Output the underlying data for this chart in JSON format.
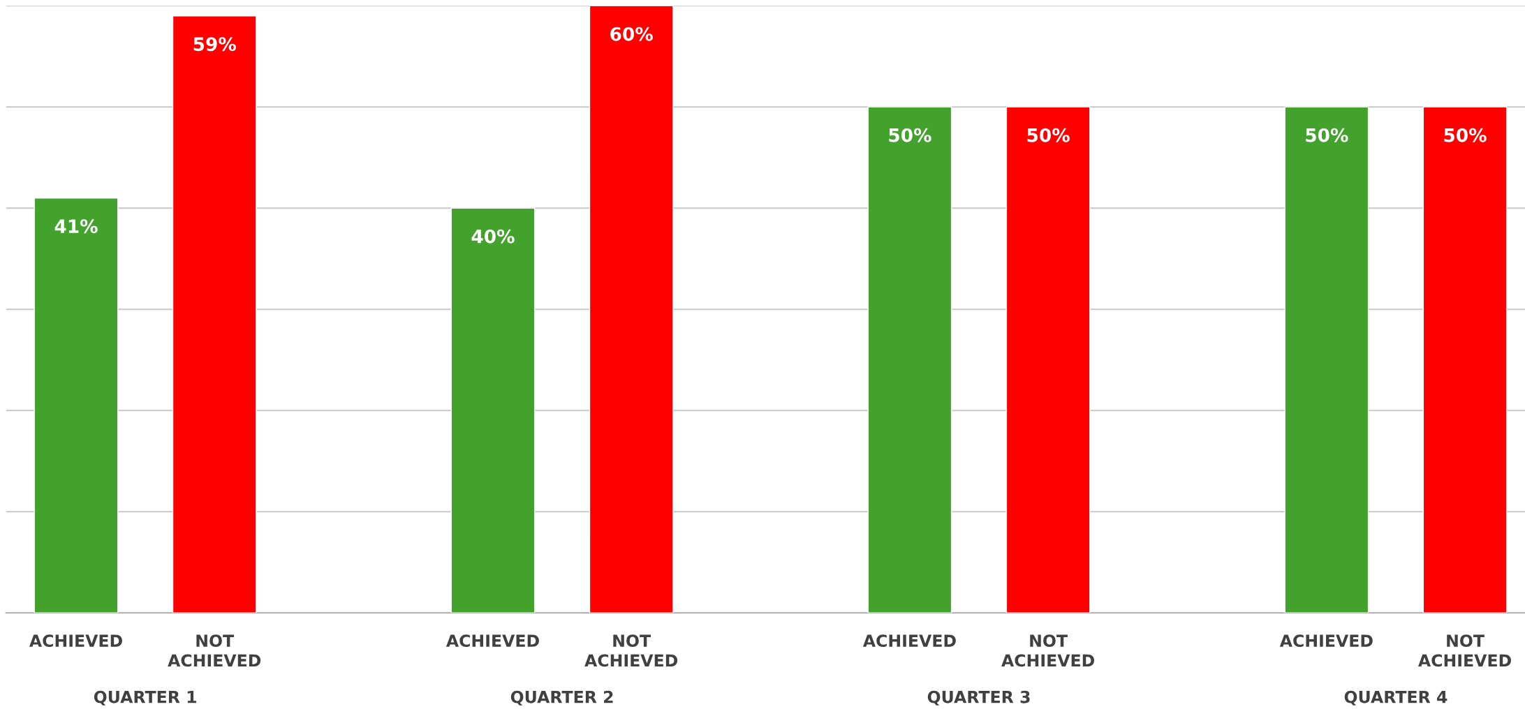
{
  "chart_data": {
    "type": "bar",
    "categories": [
      "QUARTER 1",
      "QUARTER 2",
      "QUARTER 3",
      "QUARTER 4"
    ],
    "series": [
      {
        "name": "ACHIEVED",
        "color": "#43a22c",
        "values": [
          41,
          40,
          50,
          50
        ],
        "value_labels": [
          "41%",
          "40%",
          "50%",
          "50%"
        ]
      },
      {
        "name": "NOT ACHIEVED",
        "color": "#ff0000",
        "values": [
          59,
          60,
          50,
          50
        ],
        "value_labels": [
          "59%",
          "60%",
          "50%",
          "50%"
        ]
      }
    ],
    "grid": "y",
    "tick_labels": "x"
  }
}
